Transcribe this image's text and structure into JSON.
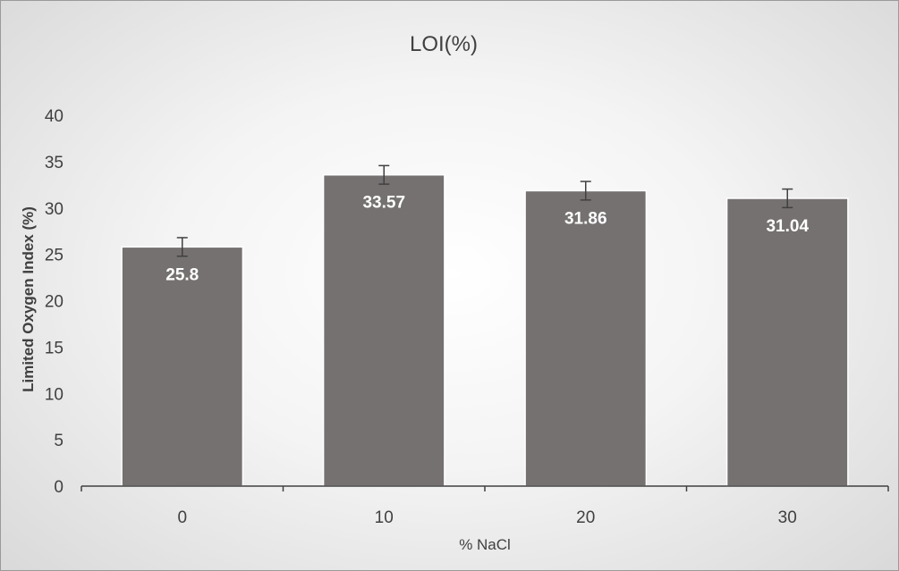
{
  "chart_data": {
    "type": "bar",
    "title": "LOI(%)",
    "xlabel": "% NaCl",
    "ylabel": "Limited Oxygen Index (%)",
    "categories": [
      "0",
      "10",
      "20",
      "30"
    ],
    "values": [
      25.8,
      33.57,
      31.86,
      31.04
    ],
    "data_labels": [
      "25.8",
      "33.57",
      "31.86",
      "31.04"
    ],
    "error": [
      1.0,
      1.0,
      1.0,
      1.0
    ],
    "ylim": [
      0,
      40
    ],
    "yticks": [
      "0",
      "5",
      "10",
      "15",
      "20",
      "25",
      "30",
      "35",
      "40"
    ],
    "grid": false,
    "legend": "none",
    "bar_color": "#757170"
  }
}
